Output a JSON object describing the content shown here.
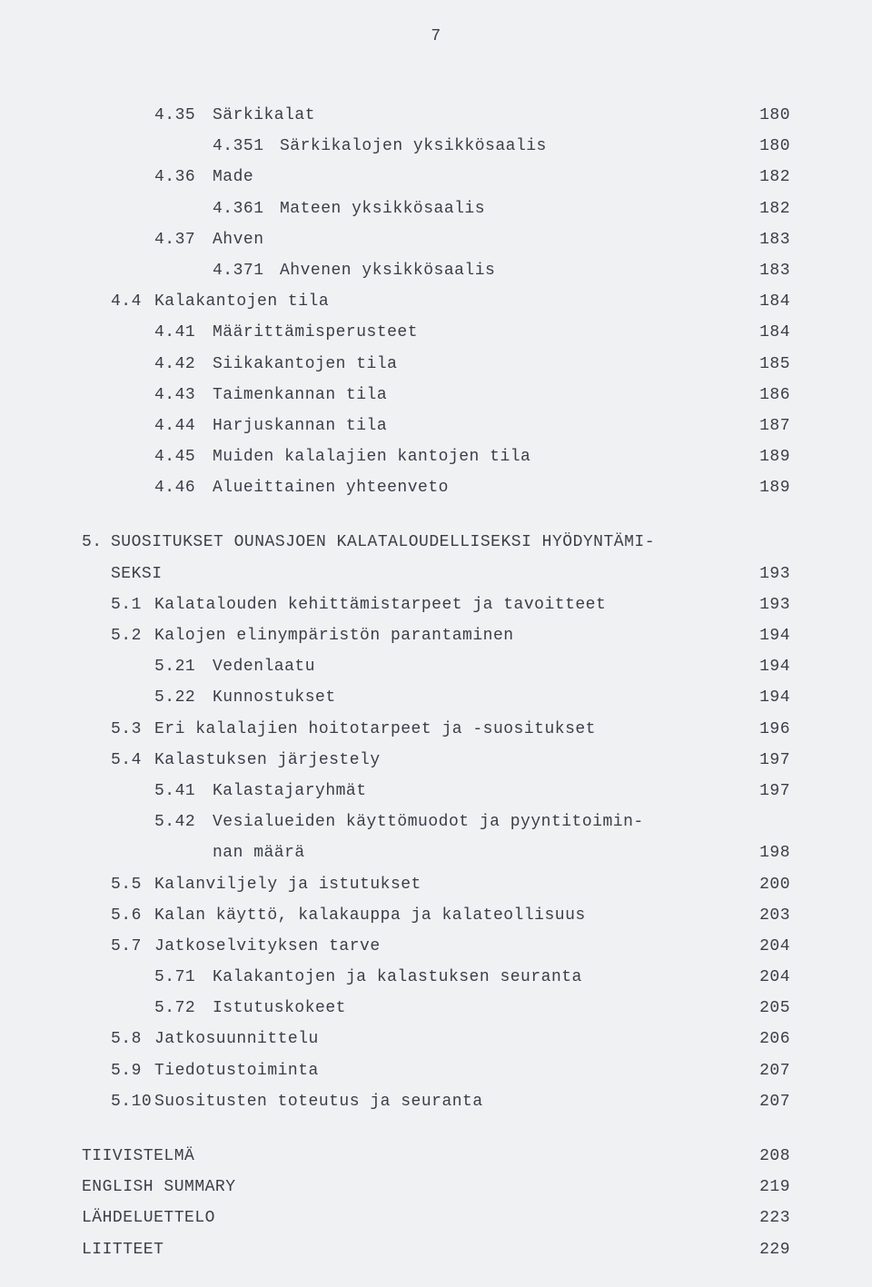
{
  "page_number": "7",
  "entries": [
    {
      "level": 3,
      "num": "4.35",
      "title": "Särkikalat",
      "page": "180"
    },
    {
      "level": 4,
      "num": "4.351",
      "title": "Särkikalojen yksikkösaalis",
      "page": "180"
    },
    {
      "level": 3,
      "num": "4.36",
      "title": "Made",
      "page": "182"
    },
    {
      "level": 4,
      "num": "4.361",
      "title": "Mateen yksikkösaalis",
      "page": "182"
    },
    {
      "level": 3,
      "num": "4.37",
      "title": "Ahven",
      "page": "183"
    },
    {
      "level": 4,
      "num": "4.371",
      "title": "Ahvenen yksikkösaalis",
      "page": "183"
    },
    {
      "level": 2,
      "num": "4.4",
      "title": "Kalakantojen tila",
      "page": "184"
    },
    {
      "level": 3,
      "num": "4.41",
      "title": "Määrittämisperusteet",
      "page": "184"
    },
    {
      "level": 3,
      "num": "4.42",
      "title": "Siikakantojen tila",
      "page": "185"
    },
    {
      "level": 3,
      "num": "4.43",
      "title": "Taimenkannan tila",
      "page": "186"
    },
    {
      "level": 3,
      "num": "4.44",
      "title": "Harjuskannan tila",
      "page": "187"
    },
    {
      "level": 3,
      "num": "4.45",
      "title": "Muiden kalalajien kantojen tila",
      "page": "189"
    },
    {
      "level": 3,
      "num": "4.46",
      "title": "Alueittainen yhteenveto",
      "page": "189"
    },
    {
      "gap": true
    },
    {
      "level": 1,
      "num": "5.",
      "title": "SUOSITUKSET OUNASJOEN KALATALOUDELLISEKSI HYÖDYNTÄMI-",
      "page": ""
    },
    {
      "level": 1,
      "num": "",
      "title": "SEKSI",
      "page": "193",
      "continuation": true
    },
    {
      "level": 2,
      "num": "5.1",
      "title": "Kalatalouden kehittämistarpeet ja tavoitteet",
      "page": "193"
    },
    {
      "level": 2,
      "num": "5.2",
      "title": "Kalojen elinympäristön parantaminen",
      "page": "194"
    },
    {
      "level": 3,
      "num": "5.21",
      "title": "Vedenlaatu",
      "page": "194"
    },
    {
      "level": 3,
      "num": "5.22",
      "title": "Kunnostukset",
      "page": "194"
    },
    {
      "level": 2,
      "num": "5.3",
      "title": "Eri kalalajien hoitotarpeet ja -suositukset",
      "page": "196"
    },
    {
      "level": 2,
      "num": "5.4",
      "title": "Kalastuksen järjestely",
      "page": "197"
    },
    {
      "level": 3,
      "num": "5.41",
      "title": "Kalastajaryhmät",
      "page": "197"
    },
    {
      "level": 3,
      "num": "5.42",
      "title": "Vesialueiden käyttömuodot ja pyyntitoimin-",
      "page": ""
    },
    {
      "level": 3,
      "num": "",
      "title": "nan määrä",
      "page": "198",
      "continuation": true
    },
    {
      "level": 2,
      "num": "5.5",
      "title": "Kalanviljely ja istutukset",
      "page": "200"
    },
    {
      "level": 2,
      "num": "5.6",
      "title": "Kalan käyttö, kalakauppa ja kalateollisuus",
      "page": "203"
    },
    {
      "level": 2,
      "num": "5.7",
      "title": "Jatkoselvityksen tarve",
      "page": "204"
    },
    {
      "level": 3,
      "num": "5.71",
      "title": "Kalakantojen ja kalastuksen seuranta",
      "page": "204"
    },
    {
      "level": 3,
      "num": "5.72",
      "title": "Istutuskokeet",
      "page": "205"
    },
    {
      "level": 2,
      "num": "5.8",
      "title": "Jatkosuunnittelu",
      "page": "206"
    },
    {
      "level": 2,
      "num": "5.9",
      "title": "Tiedotustoiminta",
      "page": "207"
    },
    {
      "level": 2,
      "num": "5.10",
      "title": "Suositusten toteutus ja seuranta",
      "page": "207"
    },
    {
      "gap": true
    },
    {
      "level": 0,
      "num": "",
      "title": "TIIVISTELMÄ",
      "page": "208"
    },
    {
      "level": 0,
      "num": "",
      "title": "ENGLISH SUMMARY",
      "page": "219"
    },
    {
      "level": 0,
      "num": "",
      "title": "LÄHDELUETTELO",
      "page": "223"
    },
    {
      "level": 0,
      "num": "",
      "title": "LIITTEET",
      "page": "229"
    }
  ]
}
